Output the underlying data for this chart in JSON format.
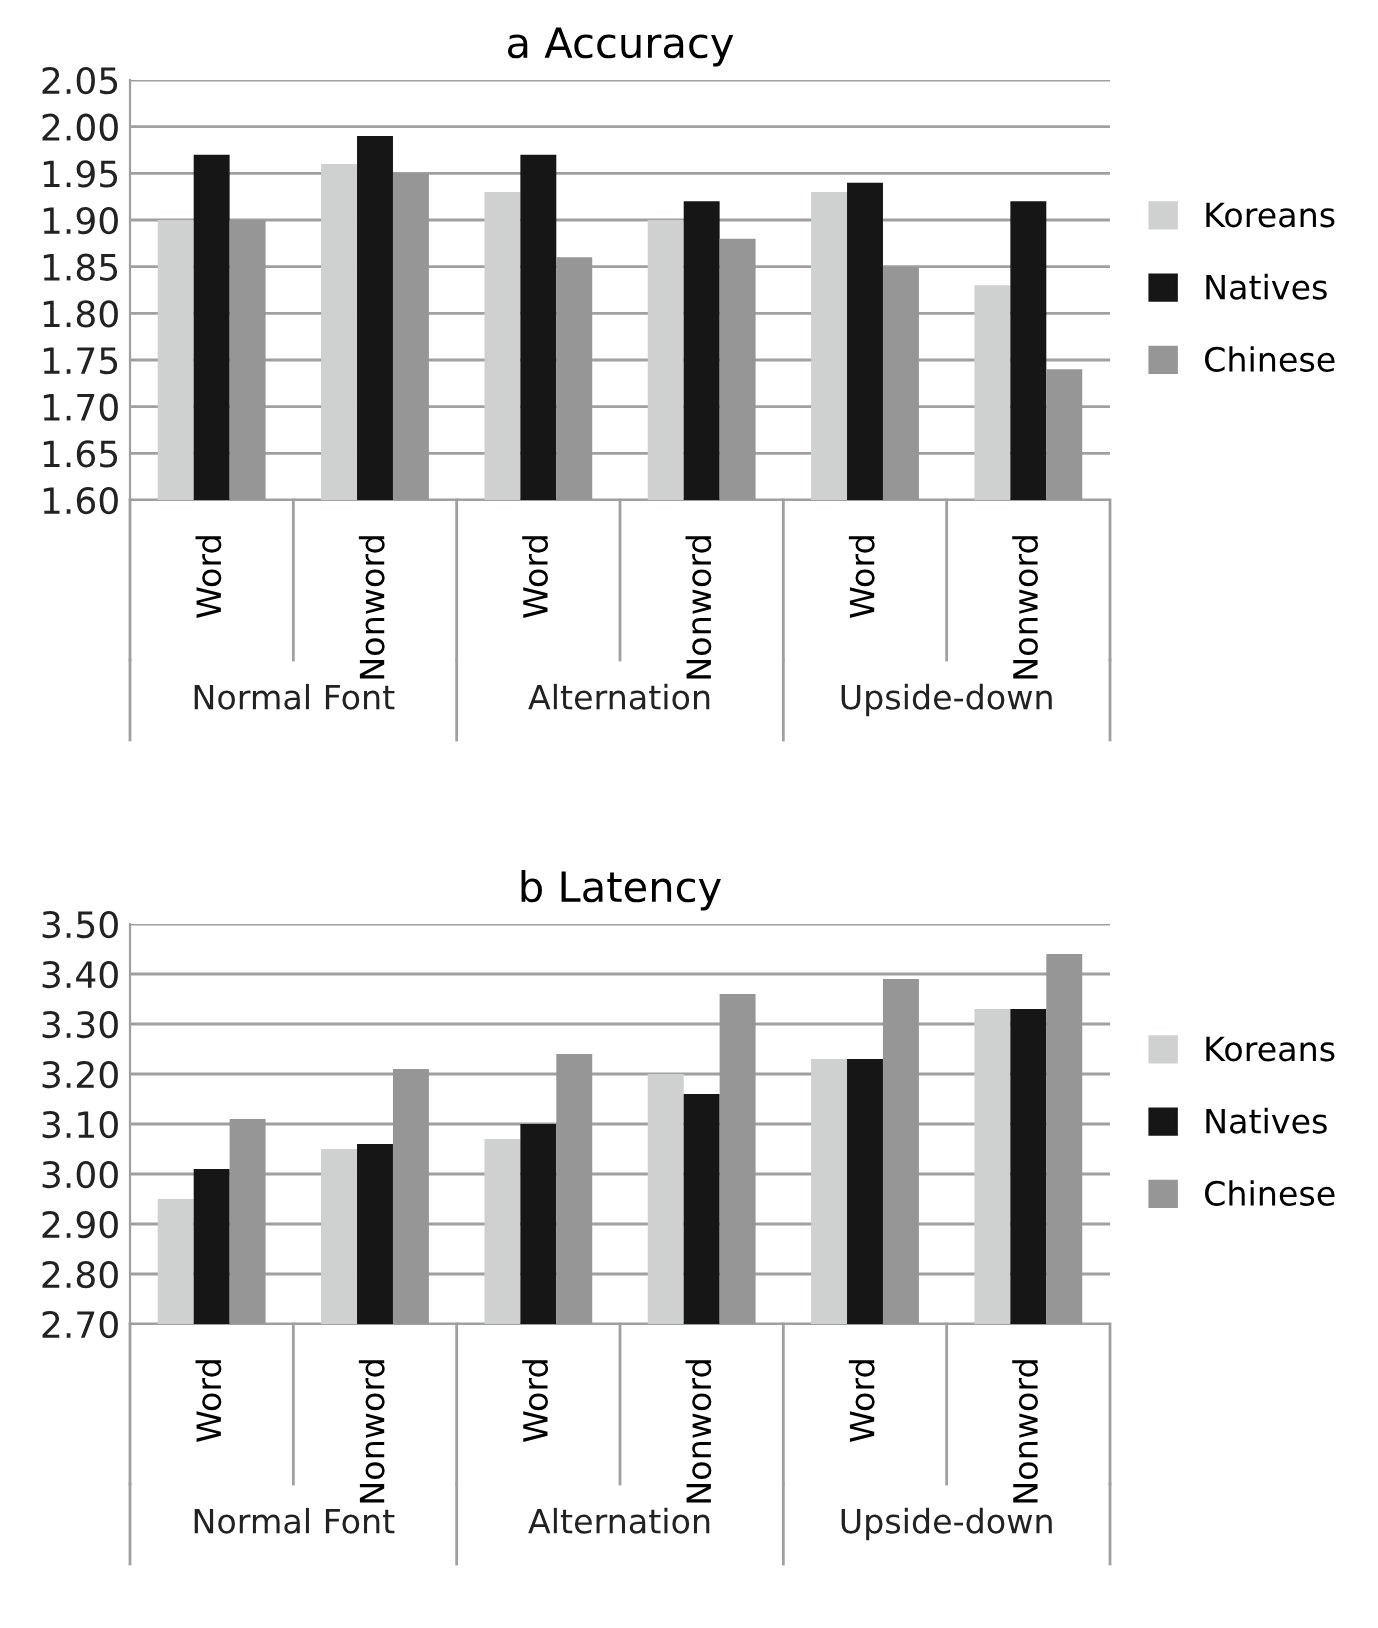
{
  "chart_data": [
    {
      "type": "bar",
      "title": "a Accuracy",
      "categories": [
        "Word",
        "Nonword",
        "Word",
        "Nonword",
        "Word",
        "Nonword"
      ],
      "series": [
        {
          "name": "Koreans",
          "color": "#cfd1d0",
          "values": [
            1.9,
            1.96,
            1.93,
            1.9,
            1.93,
            1.83
          ]
        },
        {
          "name": "Natives",
          "color": "#161616",
          "values": [
            1.97,
            1.99,
            1.97,
            1.92,
            1.94,
            1.92
          ]
        },
        {
          "name": "Chinese",
          "color": "#969696",
          "values": [
            1.9,
            1.95,
            1.86,
            1.88,
            1.85,
            1.74
          ]
        }
      ],
      "annotations": [
        "Normal Font",
        "Alternation",
        "Upside-down"
      ],
      "ylim": [
        1.6,
        2.05
      ],
      "yticks": [
        {
          "value": 1.6,
          "label": "1.60"
        },
        {
          "value": 1.65,
          "label": "1.65"
        },
        {
          "value": 1.7,
          "label": "1.70"
        },
        {
          "value": 1.75,
          "label": "1.75"
        },
        {
          "value": 1.8,
          "label": "1.80"
        },
        {
          "value": 1.85,
          "label": "1.85"
        },
        {
          "value": 1.9,
          "label": "1.90"
        },
        {
          "value": 1.95,
          "label": "1.95"
        },
        {
          "value": 2.0,
          "label": "2.00"
        },
        {
          "value": 2.05,
          "label": "2.05"
        }
      ],
      "grid": "y",
      "legend": "right"
    },
    {
      "type": "bar",
      "title": "b Latency",
      "categories": [
        "Word",
        "Nonword",
        "Word",
        "Nonword",
        "Word",
        "Nonword"
      ],
      "series": [
        {
          "name": "Koreans",
          "color": "#cfd1d0",
          "values": [
            2.95,
            3.05,
            3.07,
            3.2,
            3.23,
            3.33
          ]
        },
        {
          "name": "Natives",
          "color": "#161616",
          "values": [
            3.01,
            3.06,
            3.1,
            3.16,
            3.23,
            3.33
          ]
        },
        {
          "name": "Chinese",
          "color": "#969696",
          "values": [
            3.11,
            3.21,
            3.24,
            3.36,
            3.39,
            3.44
          ]
        }
      ],
      "annotations": [
        "Normal Font",
        "Alternation",
        "Upside-down"
      ],
      "ylim": [
        2.7,
        3.5
      ],
      "yticks": [
        {
          "value": 2.7,
          "label": "2.70"
        },
        {
          "value": 2.8,
          "label": "2.80"
        },
        {
          "value": 2.9,
          "label": "2.90"
        },
        {
          "value": 3.0,
          "label": "3.00"
        },
        {
          "value": 3.1,
          "label": "3.10"
        },
        {
          "value": 3.2,
          "label": "3.20"
        },
        {
          "value": 3.3,
          "label": "3.30"
        },
        {
          "value": 3.4,
          "label": "3.40"
        },
        {
          "value": 3.5,
          "label": "3.50"
        }
      ],
      "grid": "y",
      "legend": "right"
    }
  ]
}
